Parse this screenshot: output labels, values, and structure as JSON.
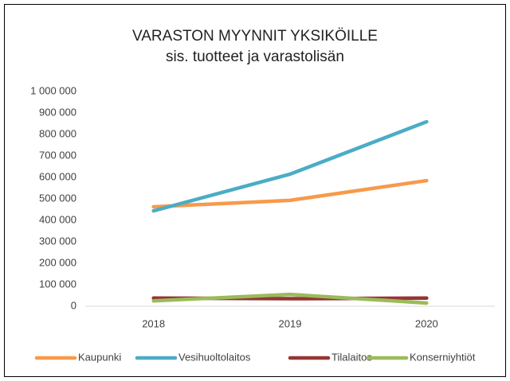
{
  "chart_data": {
    "type": "line",
    "title": "VARASTON  MYYNNIT YKSIKÖILLE",
    "subtitle": "sis. tuotteet ja varastolisän",
    "categories": [
      "2018",
      "2019",
      "2020"
    ],
    "series": [
      {
        "name": "Kaupunki",
        "color": "#f79a4a",
        "values": [
          463000,
          493000,
          585000
        ]
      },
      {
        "name": "Vesihuoltolaitos",
        "color": "#4bacc6",
        "values": [
          444000,
          615000,
          859000
        ]
      },
      {
        "name": "Tilalaitos",
        "color": "#943634",
        "values": [
          38000,
          35000,
          38000
        ]
      },
      {
        "name": "Konserniyhtiöt",
        "color": "#9bbb59",
        "values": [
          25000,
          55000,
          15000
        ]
      }
    ],
    "ylim": [
      0,
      1000000
    ],
    "yticks": [
      0,
      {
        "value": 100000,
        "label": "100 000"
      },
      {
        "value": 200000,
        "label": "200 000"
      },
      {
        "value": 300000,
        "label": "300 000"
      },
      {
        "value": 400000,
        "label": "400 000"
      },
      {
        "value": 500000,
        "label": "500 000"
      },
      {
        "value": 600000,
        "label": "600 000"
      },
      {
        "value": 700000,
        "label": "700 000"
      },
      {
        "value": 800000,
        "label": "800 000"
      },
      {
        "value": 900000,
        "label": "900 000"
      },
      {
        "value": 1000000,
        "label": "1 000 000"
      }
    ],
    "legend": "bottom"
  }
}
